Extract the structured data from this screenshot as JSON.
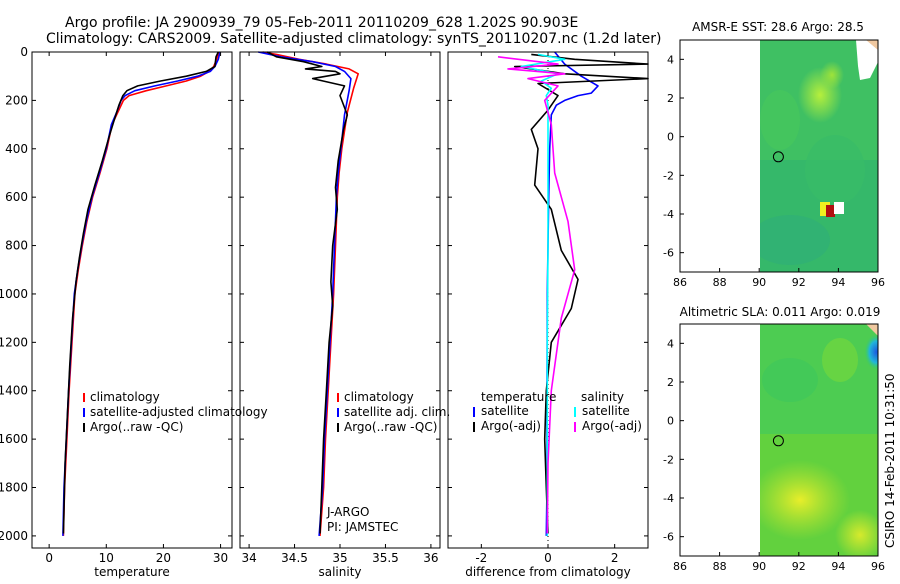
{
  "header": {
    "title_line1": "Argo profile: JA 2900939_79 05-Feb-2011 20110209_628 1.202S 90.903E",
    "title_line2": "Climatology: CARS2009. Satellite-adjusted climatology: synTS_20110207.nc (1.2d later)"
  },
  "side_stamp": "CSIRO 14-Feb-2011 10:31:50",
  "colors": {
    "climatology": "#ff0000",
    "satellite": "#0000ff",
    "argo": "#000000",
    "salinity_satellite": "#00ffff",
    "salinity_argo": "#ff00ff"
  },
  "chart_data": [
    {
      "type": "line",
      "panel": "temperature",
      "xlabel": "temperature",
      "ylabel": "",
      "xlim": [
        -3,
        32
      ],
      "ylim": [
        2050,
        0
      ],
      "xticks": [
        0,
        10,
        20,
        30
      ],
      "yticks": [
        0,
        200,
        400,
        600,
        800,
        1000,
        1200,
        1400,
        1600,
        1800,
        2000
      ],
      "legend": {
        "placement": "lower-right",
        "items": [
          "climatology",
          "satellite-adjusted climatology",
          "Argo(..raw -QC)"
        ]
      },
      "series": [
        {
          "name": "climatology",
          "color": "#ff0000",
          "x": [
            29.7,
            29.3,
            28.8,
            28.0,
            26.5,
            24.0,
            20.5,
            17.0,
            14.0,
            13.0,
            12.0,
            11.0,
            10.1,
            8.9,
            7.6,
            6.6,
            5.8,
            5.1,
            4.5,
            4.0,
            3.5,
            3.1,
            2.7,
            2.5
          ],
          "y": [
            0,
            30,
            60,
            80,
            100,
            120,
            140,
            160,
            180,
            200,
            250,
            300,
            400,
            500,
            600,
            700,
            800,
            900,
            1000,
            1200,
            1400,
            1600,
            1800,
            2000
          ]
        },
        {
          "name": "satellite-adjusted climatology",
          "color": "#0000ff",
          "x": [
            29.9,
            29.6,
            29.0,
            28.2,
            26.0,
            22.5,
            18.5,
            15.0,
            13.3,
            12.6,
            11.8,
            10.9,
            10.0,
            8.8,
            7.5,
            6.5,
            5.7,
            5.0,
            4.4,
            3.9,
            3.4,
            3.0,
            2.6,
            2.4
          ],
          "y": [
            0,
            30,
            60,
            80,
            100,
            120,
            140,
            160,
            180,
            200,
            250,
            300,
            400,
            500,
            600,
            700,
            800,
            900,
            1000,
            1200,
            1400,
            1600,
            1800,
            2000
          ]
        },
        {
          "name": "Argo(..raw -QC)",
          "color": "#000000",
          "x": [
            29.6,
            29.2,
            29.0,
            27.5,
            24.0,
            19.5,
            15.5,
            13.6,
            12.9,
            12.2,
            11.4,
            10.5,
            9.3,
            8.0,
            6.8,
            6.0,
            5.3,
            4.7,
            4.1,
            3.6,
            3.2,
            2.8,
            2.5
          ],
          "y": [
            0,
            20,
            60,
            80,
            100,
            120,
            140,
            160,
            180,
            220,
            280,
            350,
            450,
            550,
            650,
            750,
            850,
            950,
            1100,
            1300,
            1500,
            1700,
            1990
          ]
        }
      ]
    },
    {
      "type": "line",
      "panel": "salinity",
      "xlabel": "salinity",
      "xlim": [
        33.9,
        36.1
      ],
      "ylim": [
        2050,
        0
      ],
      "xticks": [
        34,
        34.5,
        35,
        35.5,
        36
      ],
      "legend": {
        "placement": "lower-right",
        "items": [
          "climatology",
          "satellite adj. clim.",
          "Argo(..raw -QC)"
        ]
      },
      "annotations": [
        "J-ARGO",
        "PI: JAMSTEC"
      ],
      "series": [
        {
          "name": "climatology",
          "color": "#ff0000",
          "x": [
            34.15,
            34.3,
            34.55,
            34.85,
            35.1,
            35.2,
            35.15,
            35.08,
            35.02,
            34.99,
            34.97,
            34.95,
            34.93,
            34.9,
            34.87,
            34.84,
            34.82,
            34.8,
            34.78
          ],
          "y": [
            0,
            10,
            30,
            50,
            70,
            90,
            150,
            250,
            400,
            500,
            600,
            800,
            1000,
            1200,
            1400,
            1600,
            1800,
            1900,
            2000
          ]
        },
        {
          "name": "satellite adj. clim.",
          "color": "#0000ff",
          "x": [
            34.1,
            34.35,
            34.7,
            34.95,
            35.05,
            35.12,
            35.1,
            35.05,
            35.01,
            34.98,
            34.96,
            34.94,
            34.92,
            34.89,
            34.86,
            34.83,
            34.81,
            34.79,
            34.77
          ],
          "y": [
            0,
            20,
            40,
            60,
            80,
            110,
            160,
            260,
            400,
            500,
            600,
            800,
            1000,
            1200,
            1400,
            1600,
            1800,
            1900,
            2000
          ]
        },
        {
          "name": "Argo(..raw -QC)",
          "color": "#000000",
          "x": [
            34.2,
            34.3,
            34.6,
            34.8,
            34.62,
            34.95,
            35.0,
            34.7,
            35.05,
            35.0,
            35.08,
            35.04,
            34.98,
            34.95,
            34.97,
            34.92,
            34.9,
            34.92,
            34.88,
            34.85,
            34.82,
            34.8,
            34.78
          ],
          "y": [
            0,
            20,
            40,
            60,
            70,
            80,
            90,
            110,
            140,
            180,
            260,
            320,
            450,
            560,
            650,
            800,
            950,
            1050,
            1200,
            1400,
            1600,
            1800,
            1990
          ]
        }
      ]
    },
    {
      "type": "line",
      "panel": "difference",
      "xlabel": "difference from climatology",
      "xlim": [
        -3,
        3
      ],
      "ylim": [
        2050,
        0
      ],
      "xticks": [
        -2,
        0,
        2
      ],
      "legend": {
        "placement": "lower-center",
        "headers": [
          "temperature",
          "salinity"
        ],
        "items": [
          "satellite",
          "Argo(-adj)",
          "satellite",
          "Argo(-adj)"
        ]
      },
      "series": [
        {
          "name": "temperature satellite",
          "color": "#0000ff",
          "x": [
            0.2,
            0.5,
            1.0,
            1.5,
            1.3,
            0.9,
            0.5,
            0.25,
            0.1,
            0.05,
            0.02,
            0.0,
            -0.02,
            -0.03,
            -0.03,
            -0.05
          ],
          "y": [
            0,
            50,
            100,
            140,
            170,
            180,
            200,
            220,
            260,
            400,
            600,
            800,
            1000,
            1400,
            1800,
            2000
          ]
        },
        {
          "name": "temperature Argo(-adj)",
          "color": "#000000",
          "x": [
            -0.5,
            0.8,
            3.0,
            -1.0,
            0.5,
            3.0,
            -0.3,
            0.3,
            0.0,
            -0.5,
            -0.3,
            -0.4,
            0.1,
            0.4,
            0.9,
            0.7,
            0.1,
            -0.05,
            -0.1,
            -0.05,
            0.0
          ],
          "y": [
            10,
            30,
            50,
            60,
            90,
            110,
            130,
            180,
            240,
            320,
            400,
            550,
            650,
            820,
            940,
            1060,
            1200,
            1400,
            1600,
            1800,
            1990
          ]
        },
        {
          "name": "salinity satellite",
          "color": "#00ffff",
          "x": [
            -0.3,
            0.5,
            -0.8,
            0.3,
            -0.2,
            0.1,
            -0.05,
            0.0,
            0.0,
            0.0,
            -0.02,
            -0.02,
            -0.02
          ],
          "y": [
            10,
            30,
            60,
            90,
            120,
            150,
            180,
            220,
            400,
            800,
            1200,
            1600,
            2000
          ]
        },
        {
          "name": "salinity Argo(-adj)",
          "color": "#ff00ff",
          "x": [
            -1.5,
            0.3,
            -1.2,
            0.5,
            -0.6,
            0.3,
            -0.1,
            0.1,
            0.2,
            0.6,
            0.8,
            0.4,
            0.1,
            0.0,
            -0.02
          ],
          "y": [
            20,
            50,
            70,
            90,
            110,
            140,
            200,
            300,
            500,
            700,
            900,
            1100,
            1400,
            1700,
            1990
          ]
        }
      ]
    },
    {
      "type": "heatmap",
      "panel": "sst-map",
      "title": "AMSR-E SST: 28.6 Argo: 28.5",
      "xlim": [
        86,
        96
      ],
      "ylim": [
        -7,
        5
      ],
      "xticks": [
        86,
        88,
        90,
        92,
        94,
        96
      ],
      "yticks": [
        -6,
        -4,
        -2,
        0,
        2,
        4
      ],
      "argo_position": [
        90.9,
        -1.2
      ]
    },
    {
      "type": "heatmap",
      "panel": "sla-map",
      "title": "Altimetric SLA: 0.011 Argo: 0.019",
      "xlim": [
        86,
        96
      ],
      "ylim": [
        -7,
        5
      ],
      "xticks": [
        86,
        88,
        90,
        92,
        94,
        96
      ],
      "yticks": [
        -6,
        -4,
        -2,
        0,
        2,
        4
      ],
      "argo_position": [
        90.9,
        -1.2
      ]
    }
  ]
}
